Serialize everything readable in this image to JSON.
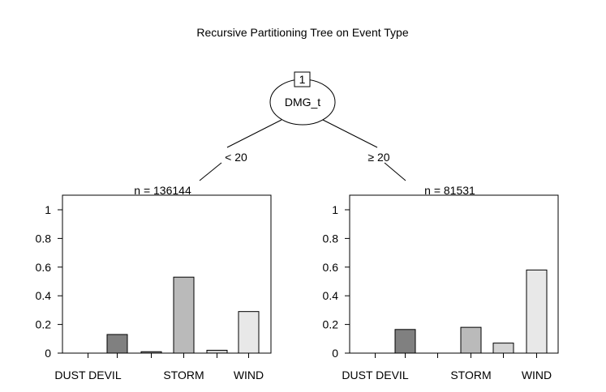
{
  "title": "Recursive Partitioning Tree on Event Type",
  "root": {
    "id": "1",
    "variable": "DMG_t"
  },
  "edges": [
    {
      "label": "< 20"
    },
    {
      "label": "≥ 20"
    }
  ],
  "chart_data": [
    {
      "type": "bar",
      "title": "n = 136144",
      "categories": [
        "DUST DEVIL",
        "",
        "",
        "STORM",
        "",
        "WIND"
      ],
      "tick_labels_shown": [
        "DUST DEVIL",
        "STORM",
        "WIND"
      ],
      "values": [
        0.0,
        0.13,
        0.01,
        0.53,
        0.02,
        0.29
      ],
      "bar_colors": [
        "#4d4d4d",
        "#808080",
        "#999999",
        "#bababa",
        "#d4d4d4",
        "#e8e8e8"
      ],
      "ylim": [
        0,
        1
      ],
      "yticks": [
        0,
        0.2,
        0.4,
        0.6,
        0.8,
        1
      ],
      "ytick_labels": [
        "0",
        "0.2",
        "0.4",
        "0.6",
        "0.8",
        "1"
      ]
    },
    {
      "type": "bar",
      "title": "n = 81531",
      "categories": [
        "DUST DEVIL",
        "",
        "",
        "STORM",
        "",
        "WIND"
      ],
      "tick_labels_shown": [
        "DUST DEVIL",
        "STORM",
        "WIND"
      ],
      "values": [
        0.0,
        0.165,
        0.0,
        0.18,
        0.07,
        0.58
      ],
      "bar_colors": [
        "#4d4d4d",
        "#808080",
        "#999999",
        "#bababa",
        "#d4d4d4",
        "#e8e8e8"
      ],
      "ylim": [
        0,
        1
      ],
      "yticks": [
        0,
        0.2,
        0.4,
        0.6,
        0.8,
        1
      ],
      "ytick_labels": [
        "0",
        "0.2",
        "0.4",
        "0.6",
        "0.8",
        "1"
      ]
    }
  ]
}
